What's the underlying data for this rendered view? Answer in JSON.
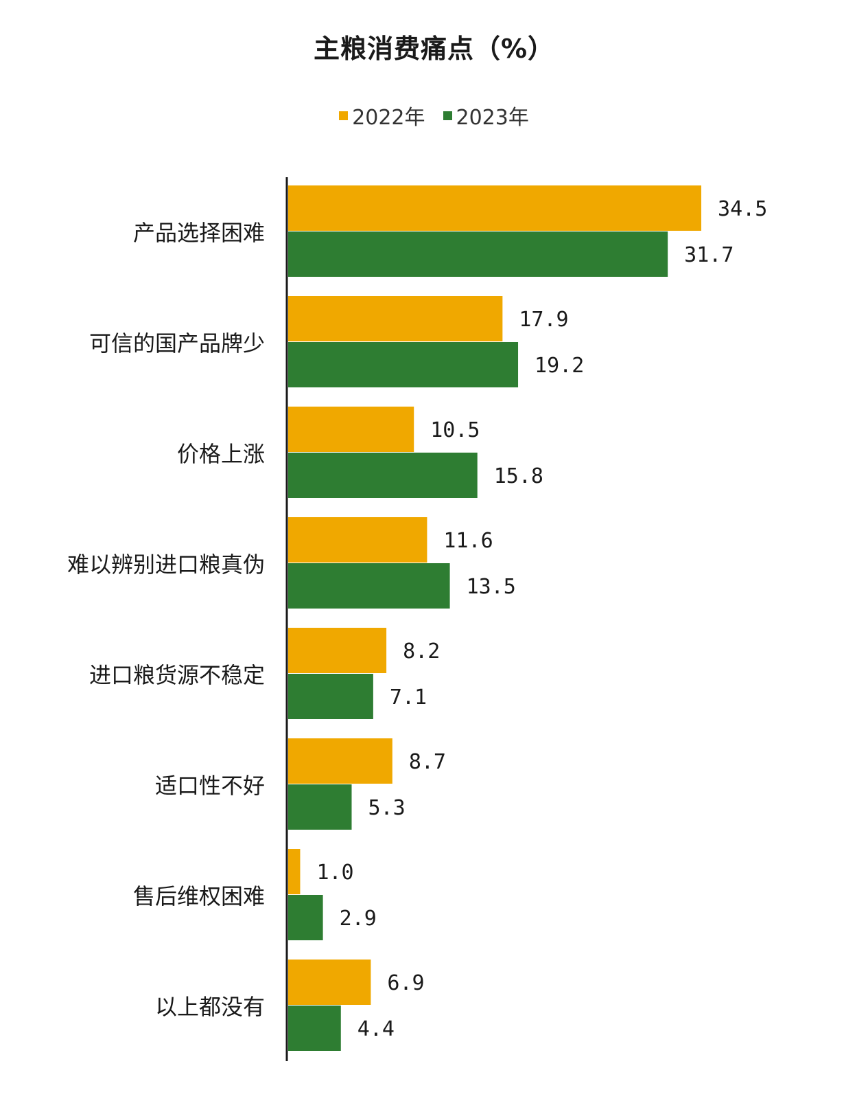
{
  "chart_data": {
    "type": "bar",
    "orientation": "horizontal",
    "title": "主粮消费痛点（%）",
    "legend_position": "top-center",
    "grid": false,
    "categories": [
      "产品选择困难",
      "可信的国产品牌少",
      "价格上涨",
      "难以辨别进口粮真伪",
      "进口粮货源不稳定",
      "适口性不好",
      "售后维权困难",
      "以上都没有"
    ],
    "series": [
      {
        "name": "2022年",
        "color": "#F0A800",
        "values": [
          34.5,
          17.9,
          10.5,
          11.6,
          8.2,
          8.7,
          1.0,
          6.9
        ],
        "labels": [
          "34.5",
          "17.9",
          "10.5",
          "11.6",
          "8.2",
          "8.7",
          "1.0",
          "6.9"
        ]
      },
      {
        "name": "2023年",
        "color": "#2E7D32",
        "values": [
          31.7,
          19.2,
          15.8,
          13.5,
          7.1,
          5.3,
          2.9,
          4.4
        ],
        "labels": [
          "31.7",
          "19.2",
          "15.8",
          "13.5",
          "7.1",
          "5.3",
          "2.9",
          "4.4"
        ]
      }
    ],
    "xlim": [
      0,
      40
    ]
  }
}
